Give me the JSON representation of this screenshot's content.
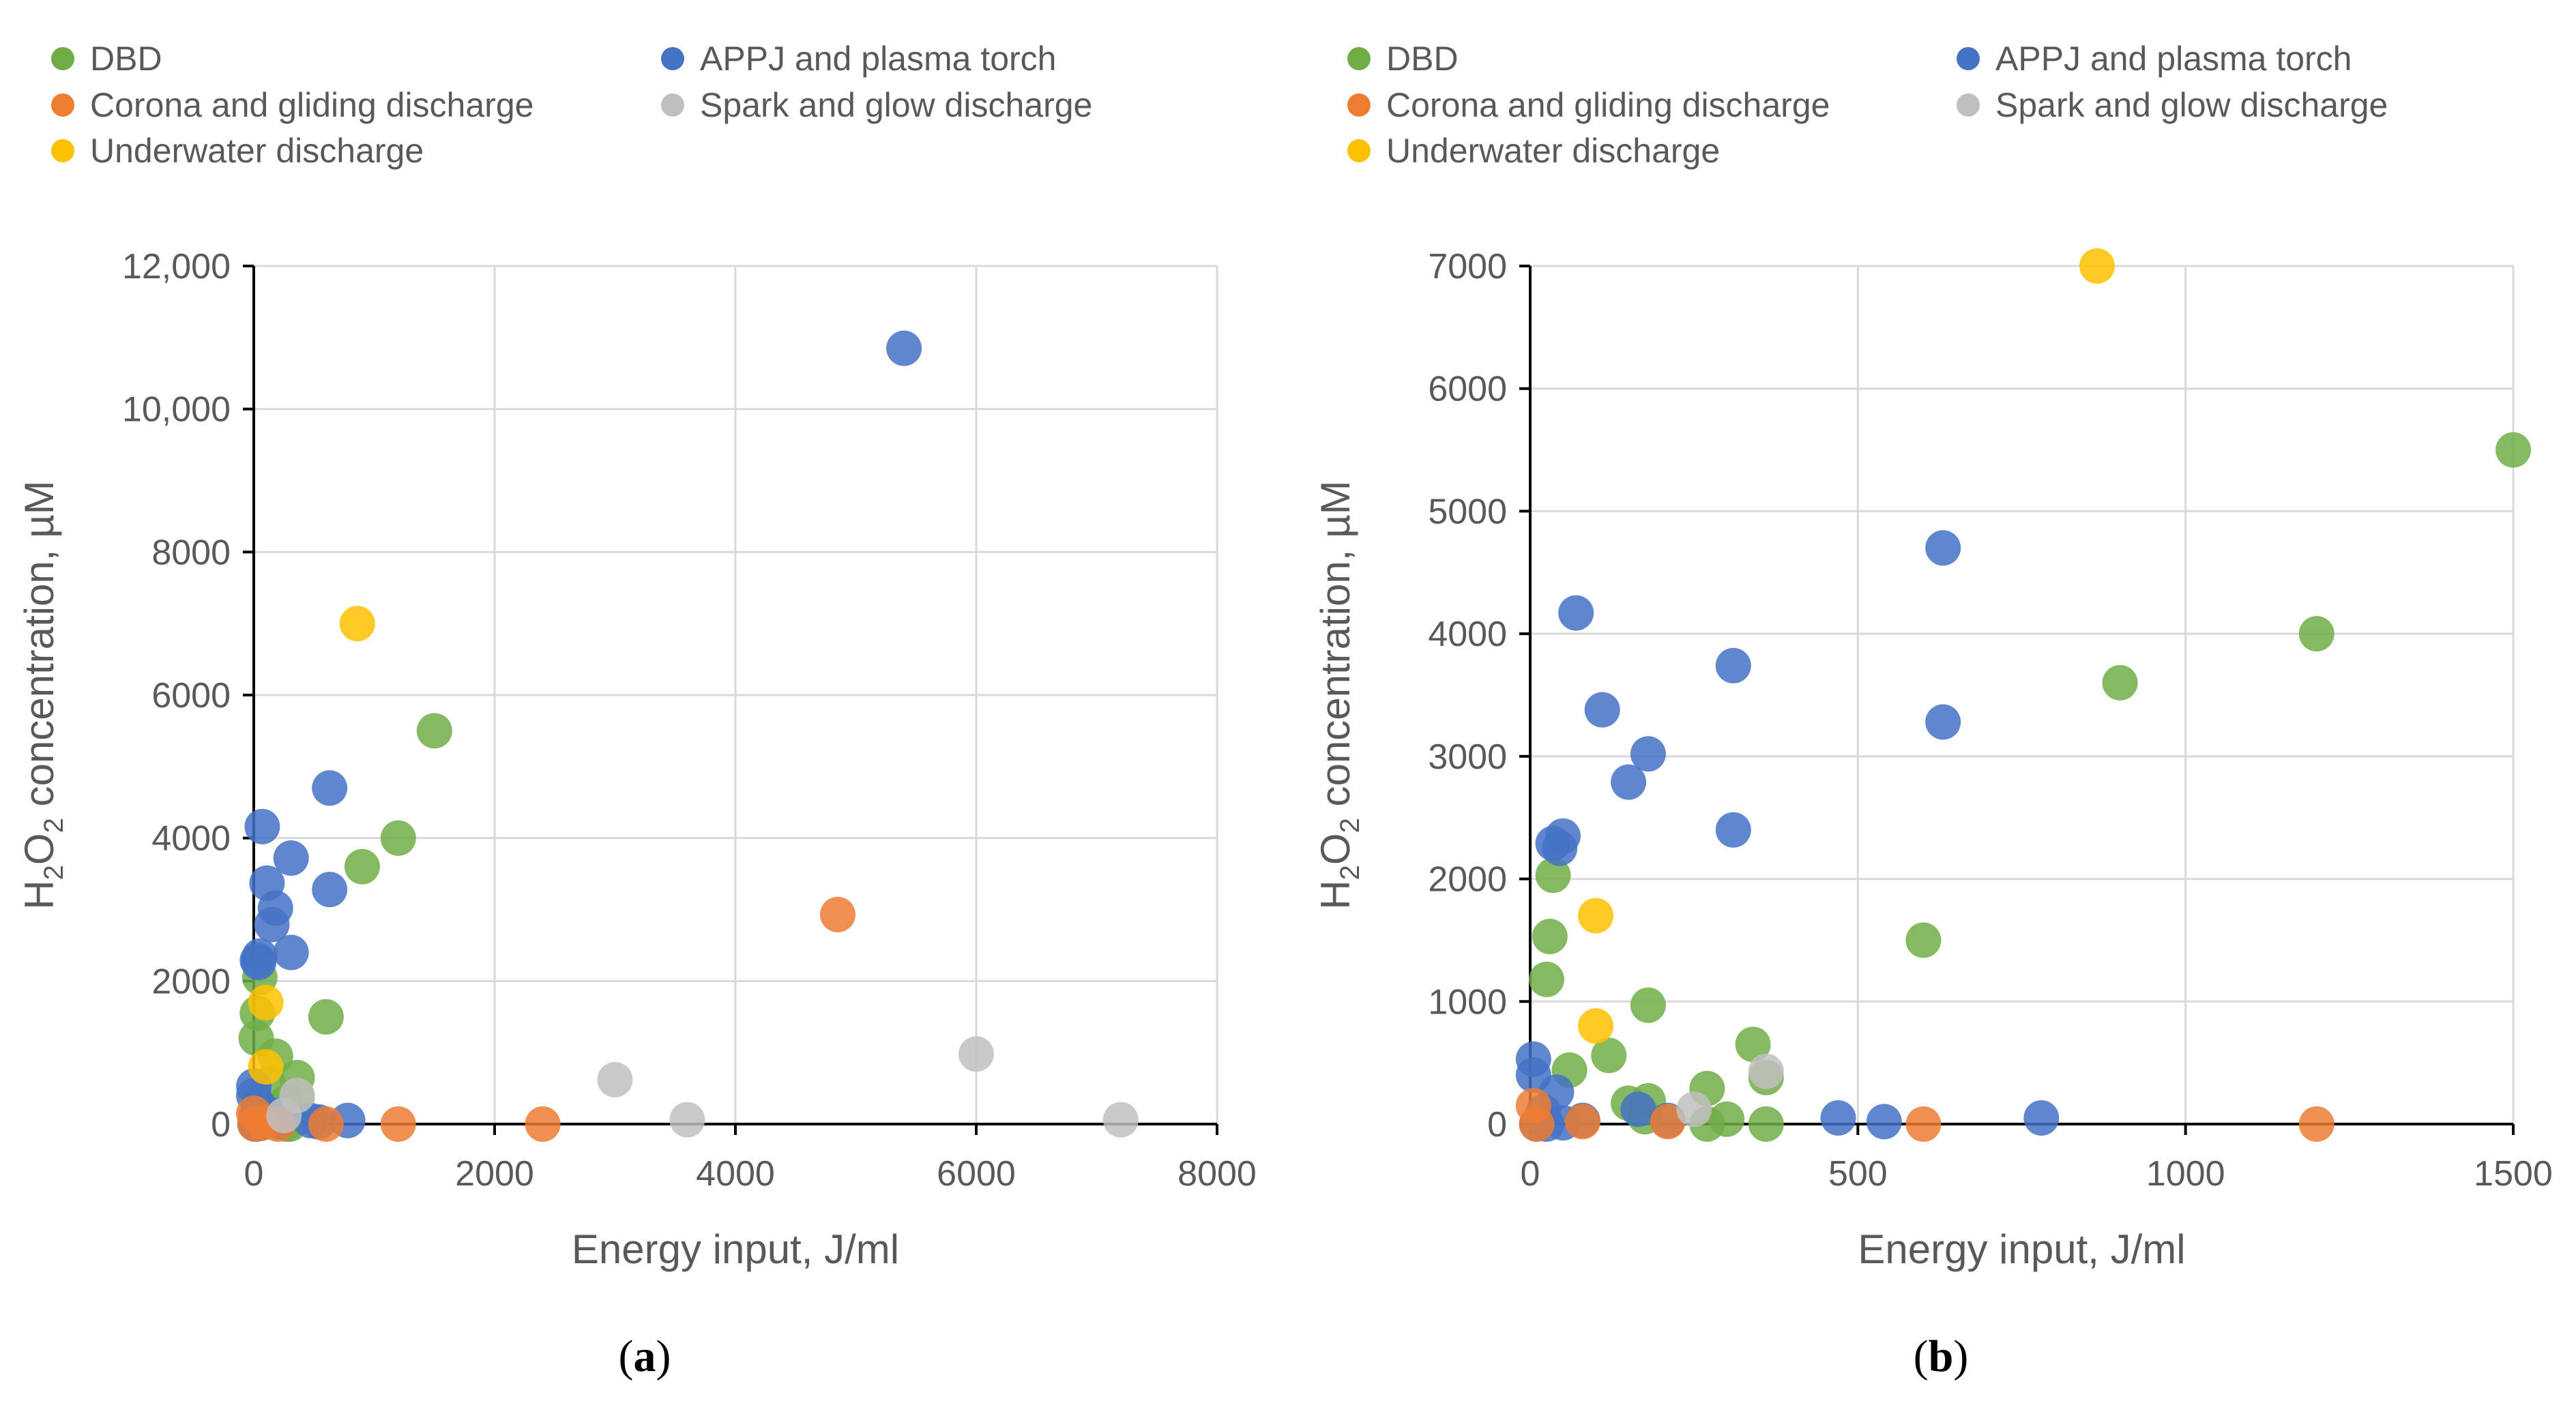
{
  "colors": {
    "DBD": "#70AD47",
    "APPJ and plasma torch": "#4472C4",
    "Corona and gliding discharge": "#ED7D31",
    "Spark and glow discharge": "#BFBFBF",
    "Underwater discharge": "#FFC000",
    "grid": "#D9D9D9",
    "axis": "#000000"
  },
  "chart_data": [
    {
      "type": "scatter",
      "panel_label": "a",
      "xlabel": "Energy input, J/ml",
      "ylabel": {
        "main": "H",
        "sub1": "2",
        "mid": "O",
        "sub2": "2",
        "rest": " concentration, µM"
      },
      "xlim": [
        0,
        8000
      ],
      "ylim": [
        0,
        12000
      ],
      "xticks": [
        0,
        2000,
        4000,
        6000,
        8000
      ],
      "xtick_labels": [
        "0",
        "2000",
        "4000",
        "6000",
        "8000"
      ],
      "yticks": [
        0,
        2000,
        4000,
        6000,
        8000,
        10000,
        12000
      ],
      "ytick_labels": [
        "0",
        "2000",
        "4000",
        "6000",
        "8000",
        "10,000",
        "12,000"
      ],
      "legend": [
        "DBD",
        "APPJ and plasma torch",
        "Corona and gliding discharge",
        "Spark and glow discharge",
        "Underwater discharge"
      ],
      "series": [
        {
          "name": "DBD",
          "points": [
            [
              1500,
              5500
            ],
            [
              1200,
              4000
            ],
            [
              900,
              3600
            ],
            [
              600,
              1500
            ],
            [
              360,
              650
            ],
            [
              180,
              950
            ],
            [
              120,
              560
            ],
            [
              50,
              2050
            ],
            [
              30,
              1550
            ],
            [
              20,
              1200
            ],
            [
              360,
              380
            ],
            [
              270,
              300
            ],
            [
              180,
              200
            ],
            [
              150,
              100
            ],
            [
              300,
              0
            ],
            [
              270,
              0
            ]
          ]
        },
        {
          "name": "APPJ and plasma torch",
          "points": [
            [
              5400,
              10850
            ],
            [
              630,
              4700
            ],
            [
              630,
              3280
            ],
            [
              70,
              4160
            ],
            [
              310,
              3720
            ],
            [
              180,
              3020
            ],
            [
              150,
              2790
            ],
            [
              110,
              3370
            ],
            [
              310,
              2400
            ],
            [
              50,
              2350
            ],
            [
              40,
              2260
            ],
            [
              30,
              2290
            ],
            [
              0,
              530
            ],
            [
              0,
              400
            ],
            [
              40,
              260
            ],
            [
              20,
              100
            ],
            [
              160,
              120
            ],
            [
              780,
              50
            ],
            [
              470,
              50
            ],
            [
              540,
              30
            ],
            [
              200,
              30
            ],
            [
              10,
              0
            ],
            [
              50,
              10
            ],
            [
              20,
              0
            ]
          ]
        },
        {
          "name": "Corona and gliding discharge",
          "points": [
            [
              4850,
              2930
            ],
            [
              2400,
              0
            ],
            [
              1200,
              0
            ],
            [
              600,
              0
            ],
            [
              0,
              150
            ],
            [
              80,
              20
            ],
            [
              200,
              0
            ],
            [
              10,
              0
            ]
          ]
        },
        {
          "name": "Spark and glow discharge",
          "points": [
            [
              7200,
              60
            ],
            [
              6000,
              980
            ],
            [
              3600,
              60
            ],
            [
              3000,
              620
            ],
            [
              360,
              400
            ],
            [
              250,
              120
            ]
          ]
        },
        {
          "name": "Underwater discharge",
          "points": [
            [
              860,
              7000
            ],
            [
              100,
              1700
            ],
            [
              100,
              800
            ]
          ]
        }
      ]
    },
    {
      "type": "scatter",
      "panel_label": "b",
      "xlabel": "Energy input, J/ml",
      "ylabel": {
        "main": "H",
        "sub1": "2",
        "mid": "O",
        "sub2": "2",
        "rest": " concentration, µM"
      },
      "xlim": [
        0,
        1500
      ],
      "ylim": [
        0,
        7000
      ],
      "xticks": [
        0,
        500,
        1000,
        1500
      ],
      "xtick_labels": [
        "0",
        "500",
        "1000",
        "1500"
      ],
      "yticks": [
        0,
        1000,
        2000,
        3000,
        4000,
        5000,
        6000,
        7000
      ],
      "ytick_labels": [
        "0",
        "1000",
        "2000",
        "3000",
        "4000",
        "5000",
        "6000",
        "7000"
      ],
      "legend": [
        "DBD",
        "APPJ and plasma torch",
        "Corona and gliding discharge",
        "Spark and glow discharge",
        "Underwater discharge"
      ],
      "series": [
        {
          "name": "DBD",
          "points": [
            [
              1500,
              5500
            ],
            [
              1200,
              4000
            ],
            [
              900,
              3600
            ],
            [
              600,
              1500
            ],
            [
              180,
              970
            ],
            [
              120,
              560
            ],
            [
              340,
              650
            ],
            [
              360,
              380
            ],
            [
              270,
              290
            ],
            [
              180,
              190
            ],
            [
              150,
              170
            ],
            [
              175,
              60
            ],
            [
              60,
              440
            ],
            [
              35,
              2030
            ],
            [
              30,
              1530
            ],
            [
              25,
              1180
            ],
            [
              300,
              40
            ],
            [
              270,
              0
            ],
            [
              360,
              0
            ]
          ]
        },
        {
          "name": "APPJ and plasma torch",
          "points": [
            [
              630,
              4700
            ],
            [
              630,
              3280
            ],
            [
              70,
              4170
            ],
            [
              310,
              3740
            ],
            [
              180,
              3020
            ],
            [
              150,
              2790
            ],
            [
              110,
              3380
            ],
            [
              310,
              2400
            ],
            [
              50,
              2350
            ],
            [
              45,
              2250
            ],
            [
              35,
              2290
            ],
            [
              5,
              530
            ],
            [
              5,
              400
            ],
            [
              40,
              260
            ],
            [
              20,
              100
            ],
            [
              165,
              120
            ],
            [
              780,
              50
            ],
            [
              470,
              50
            ],
            [
              540,
              20
            ],
            [
              210,
              30
            ],
            [
              10,
              0
            ],
            [
              50,
              10
            ],
            [
              25,
              0
            ],
            [
              80,
              30
            ]
          ]
        },
        {
          "name": "Corona and gliding discharge",
          "points": [
            [
              1200,
              0
            ],
            [
              600,
              0
            ],
            [
              5,
              150
            ],
            [
              80,
              20
            ],
            [
              210,
              20
            ],
            [
              10,
              0
            ]
          ]
        },
        {
          "name": "Spark and glow discharge",
          "points": [
            [
              360,
              430
            ],
            [
              250,
              120
            ]
          ]
        },
        {
          "name": "Underwater discharge",
          "points": [
            [
              865,
              7000
            ],
            [
              100,
              1700
            ],
            [
              100,
              800
            ]
          ]
        }
      ]
    }
  ]
}
